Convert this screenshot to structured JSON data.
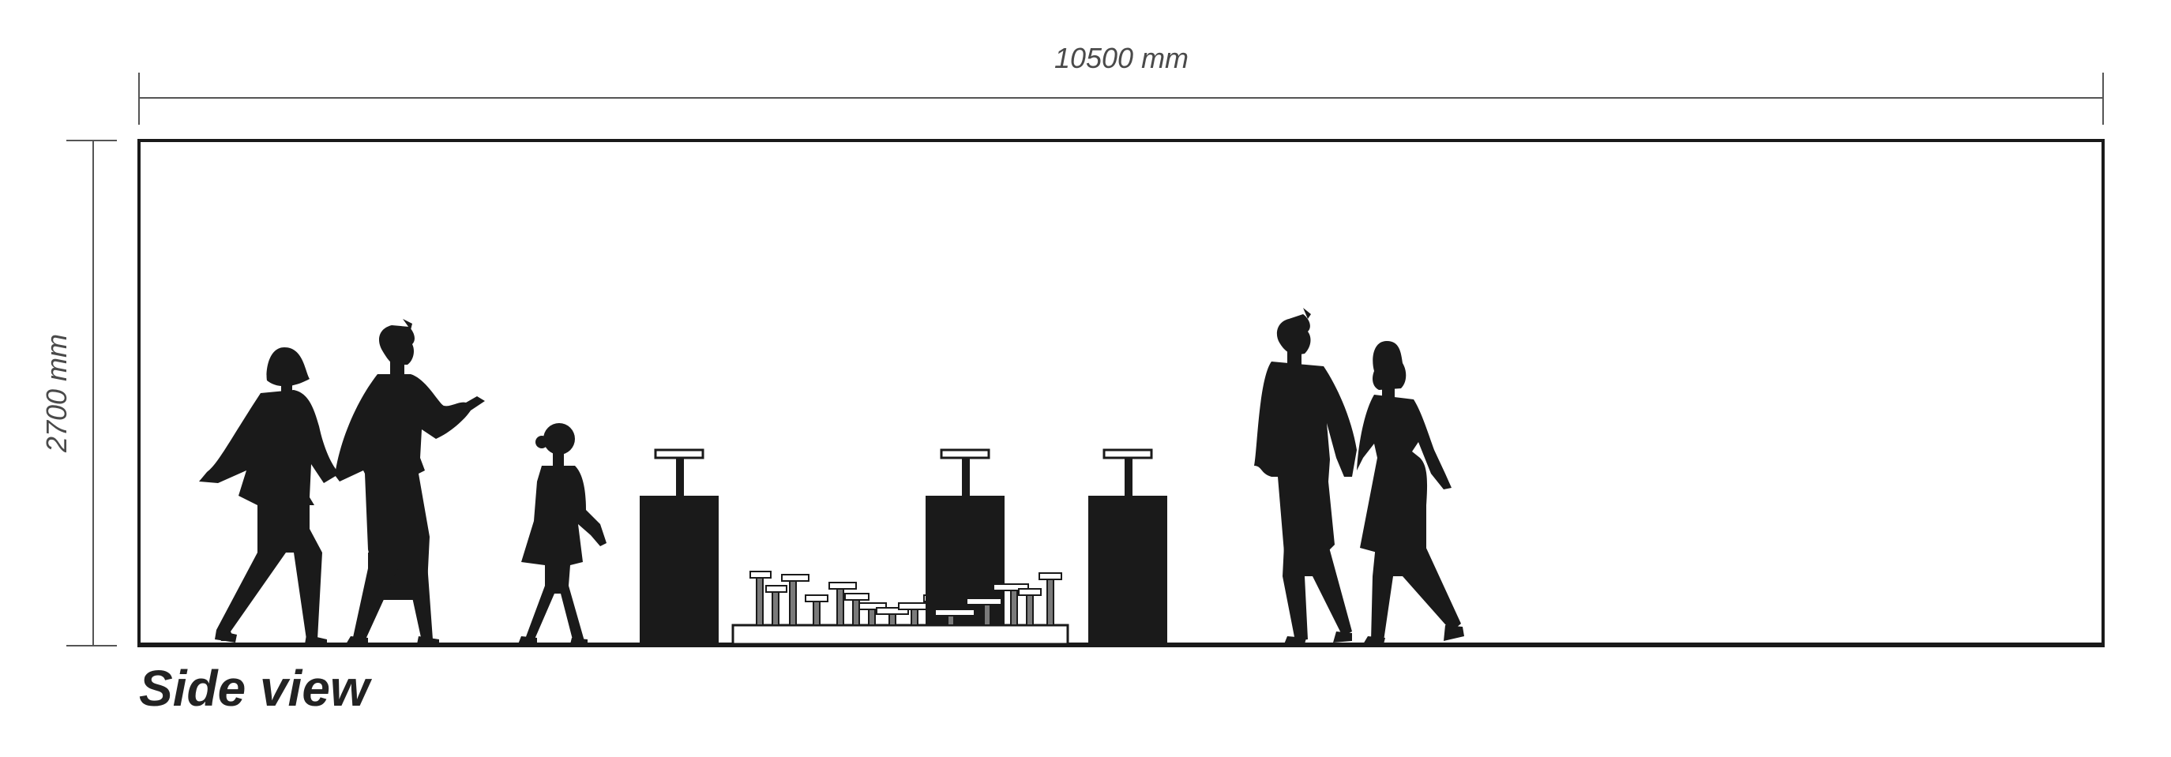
{
  "dimensions": {
    "width_label": "10500 mm",
    "height_label": "2700 mm"
  },
  "view_title": "Side view",
  "colors": {
    "line": "#555555",
    "frame": "#1a1a1a",
    "silhouette": "#1a1a1a",
    "text": "#4a4a4a",
    "mid_gray": "#7a7a7a"
  }
}
